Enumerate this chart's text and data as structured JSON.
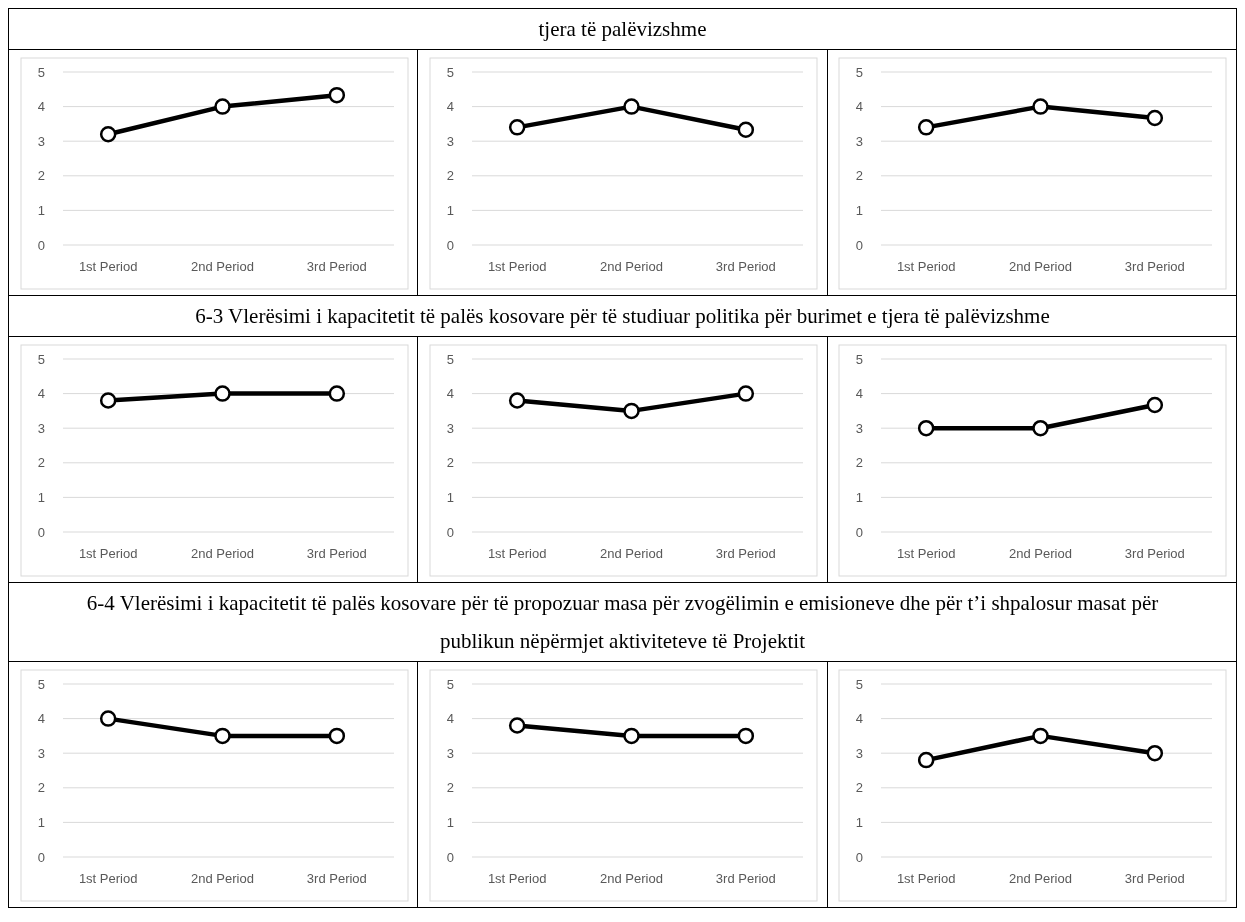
{
  "chart_data": [
    {
      "type": "other",
      "title": "tjera të palëvizshme"
    },
    {
      "type": "line",
      "categories": [
        "1st Period",
        "2nd Period",
        "3rd Period"
      ],
      "series": [
        {
          "color": "#000000",
          "values": [
            3.2,
            4,
            4.33
          ]
        }
      ],
      "ylim": [
        0,
        5
      ],
      "yticks": [
        0,
        1,
        2,
        3,
        4,
        5
      ],
      "grid": "y",
      "marker": "circle"
    },
    {
      "type": "line",
      "categories": [
        "1st Period",
        "2nd Period",
        "3rd Period"
      ],
      "series": [
        {
          "color": "#000000",
          "values": [
            3.4,
            4,
            3.33
          ]
        }
      ],
      "ylim": [
        0,
        5
      ],
      "yticks": [
        0,
        1,
        2,
        3,
        4,
        5
      ],
      "grid": "y",
      "marker": "circle"
    },
    {
      "type": "line",
      "categories": [
        "1st Period",
        "2nd Period",
        "3rd Period"
      ],
      "series": [
        {
          "color": "#000000",
          "values": [
            3.4,
            4,
            3.67
          ]
        }
      ],
      "ylim": [
        0,
        5
      ],
      "yticks": [
        0,
        1,
        2,
        3,
        4,
        5
      ],
      "grid": "y",
      "marker": "circle"
    },
    {
      "type": "other",
      "title": "6-3 Vlerësimi i kapacitetit të palës kosovare për të studiuar politika për burimet e tjera të palëvizshme"
    },
    {
      "type": "line",
      "categories": [
        "1st Period",
        "2nd Period",
        "3rd Period"
      ],
      "series": [
        {
          "color": "#000000",
          "values": [
            3.8,
            4,
            4
          ]
        }
      ],
      "ylim": [
        0,
        5
      ],
      "yticks": [
        0,
        1,
        2,
        3,
        4,
        5
      ],
      "grid": "y",
      "marker": "circle"
    },
    {
      "type": "line",
      "categories": [
        "1st Period",
        "2nd Period",
        "3rd Period"
      ],
      "series": [
        {
          "color": "#000000",
          "values": [
            3.8,
            3.5,
            4
          ]
        }
      ],
      "ylim": [
        0,
        5
      ],
      "yticks": [
        0,
        1,
        2,
        3,
        4,
        5
      ],
      "grid": "y",
      "marker": "circle"
    },
    {
      "type": "line",
      "categories": [
        "1st Period",
        "2nd Period",
        "3rd Period"
      ],
      "series": [
        {
          "color": "#000000",
          "values": [
            3,
            3,
            3.67
          ]
        }
      ],
      "ylim": [
        0,
        5
      ],
      "yticks": [
        0,
        1,
        2,
        3,
        4,
        5
      ],
      "grid": "y",
      "marker": "circle"
    },
    {
      "type": "other",
      "title": "6-4 Vlerësimi i kapacitetit të palës kosovare për të propozuar masa për zvogëlimin e emisioneve dhe për t’i shpalosur masat për publikun nëpërmjet aktiviteteve të Projektit"
    },
    {
      "type": "line",
      "categories": [
        "1st Period",
        "2nd Period",
        "3rd Period"
      ],
      "series": [
        {
          "color": "#000000",
          "values": [
            4,
            3.5,
            3.5
          ]
        }
      ],
      "ylim": [
        0,
        5
      ],
      "yticks": [
        0,
        1,
        2,
        3,
        4,
        5
      ],
      "grid": "y",
      "marker": "circle"
    },
    {
      "type": "line",
      "categories": [
        "1st Period",
        "2nd Period",
        "3rd Period"
      ],
      "series": [
        {
          "color": "#000000",
          "values": [
            3.8,
            3.5,
            3.5
          ]
        }
      ],
      "ylim": [
        0,
        5
      ],
      "yticks": [
        0,
        1,
        2,
        3,
        4,
        5
      ],
      "grid": "y",
      "marker": "circle"
    },
    {
      "type": "line",
      "categories": [
        "1st Period",
        "2nd Period",
        "3rd Period"
      ],
      "series": [
        {
          "color": "#000000",
          "values": [
            2.8,
            3.5,
            3
          ]
        }
      ],
      "ylim": [
        0,
        5
      ],
      "yticks": [
        0,
        1,
        2,
        3,
        4,
        5
      ],
      "grid": "y",
      "marker": "circle"
    }
  ]
}
